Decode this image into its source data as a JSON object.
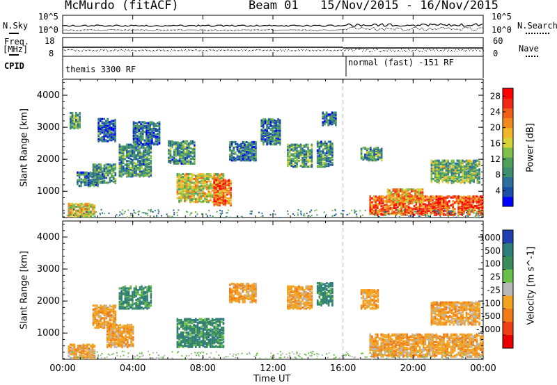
{
  "header": {
    "station": "McMurdo (fitACF)",
    "beam": "Beam 01",
    "date_range": "15/Nov/2015 - 16/Nov/2015"
  },
  "top_panels": {
    "nsky_label": "N.Sky",
    "nsearch_label": "N.Search",
    "noise_ticks_left": [
      "10^5",
      "10^0"
    ],
    "noise_ticks_right": [
      "10^5",
      "10^0"
    ],
    "freq_label": "Freq.",
    "freq_unit": "[MHz]",
    "freq_ticks": [
      "18",
      "8"
    ],
    "nave_label": "Nave",
    "nave_ticks": [
      "60",
      "0"
    ],
    "cpid_label": "CPID",
    "cpid_segments": [
      "themis 3300 RF",
      "normal (fast) -151 RF"
    ]
  },
  "x_axis": {
    "title": "Time UT",
    "ticks": [
      "00:00",
      "04:00",
      "08:00",
      "12:00",
      "16:00",
      "20:00",
      "00:00"
    ]
  },
  "chart_data": [
    {
      "type": "heatmap",
      "name": "power",
      "ylabel": "Slant Range [km]",
      "yticks": [
        1000,
        2000,
        3000,
        4000
      ],
      "ylim": [
        180,
        4500
      ],
      "xlim_hours": [
        0,
        24
      ],
      "colorbar": {
        "label": "Power [dB]",
        "ticks": [
          4,
          8,
          12,
          16,
          20,
          24,
          28
        ],
        "range": [
          0,
          30
        ],
        "colors": [
          "#0000ff",
          "#1a4fa8",
          "#2f6f9c",
          "#3e8f6e",
          "#4fa05a",
          "#7fc04a",
          "#d6d23a",
          "#f2b629",
          "#f08a1e",
          "#ef5d18",
          "#ee2a14",
          "#ff0000"
        ]
      },
      "regions": [
        {
          "t": [
            0.3,
            1.8
          ],
          "r": [
            250,
            650
          ],
          "level": 0.55
        },
        {
          "t": [
            0.4,
            1.0
          ],
          "r": [
            3000,
            3500
          ],
          "level": 0.35
        },
        {
          "t": [
            0.8,
            2.0
          ],
          "r": [
            1200,
            1650
          ],
          "level": 0.25
        },
        {
          "t": [
            1.7,
            3.0
          ],
          "r": [
            1300,
            1900
          ],
          "level": 0.3
        },
        {
          "t": [
            2.0,
            3.0
          ],
          "r": [
            2600,
            3300
          ],
          "level": 0.2
        },
        {
          "t": [
            3.2,
            5.0
          ],
          "r": [
            1500,
            2500
          ],
          "level": 0.3
        },
        {
          "t": [
            4.0,
            5.5
          ],
          "r": [
            2500,
            3200
          ],
          "level": 0.2
        },
        {
          "t": [
            6.0,
            7.5
          ],
          "r": [
            1900,
            2600
          ],
          "level": 0.3
        },
        {
          "t": [
            6.5,
            9.2
          ],
          "r": [
            700,
            1600
          ],
          "level": 0.55
        },
        {
          "t": [
            8.6,
            9.6
          ],
          "r": [
            600,
            1400
          ],
          "level": 0.75
        },
        {
          "t": [
            9.5,
            11.0
          ],
          "r": [
            2000,
            2600
          ],
          "level": 0.25
        },
        {
          "t": [
            11.3,
            12.4
          ],
          "r": [
            2500,
            3300
          ],
          "level": 0.25
        },
        {
          "t": [
            12.8,
            14.2
          ],
          "r": [
            1800,
            2500
          ],
          "level": 0.35
        },
        {
          "t": [
            14.5,
            15.4
          ],
          "r": [
            1800,
            2600
          ],
          "level": 0.3
        },
        {
          "t": [
            14.8,
            15.6
          ],
          "r": [
            3100,
            3500
          ],
          "level": 0.2
        },
        {
          "t": [
            17.0,
            18.2
          ],
          "r": [
            2000,
            2400
          ],
          "level": 0.3
        },
        {
          "t": [
            17.5,
            24.0
          ],
          "r": [
            300,
            900
          ],
          "level": 0.8
        },
        {
          "t": [
            18.5,
            20.5
          ],
          "r": [
            700,
            1100
          ],
          "level": 0.65
        },
        {
          "t": [
            21.0,
            23.8
          ],
          "r": [
            1300,
            2000
          ],
          "level": 0.4
        }
      ]
    },
    {
      "type": "heatmap",
      "name": "velocity",
      "ylabel": "Slant Range [km]",
      "yticks": [
        1000,
        2000,
        3000,
        4000
      ],
      "ylim": [
        180,
        4500
      ],
      "xlim_hours": [
        0,
        24
      ],
      "colorbar": {
        "label": "Velocity [m s^-1]",
        "tick_labels": [
          "1000",
          "500",
          "100",
          "25",
          "-25",
          "-100",
          "-500",
          "-1000"
        ],
        "colors": [
          "#1f3fb0",
          "#2e7d7a",
          "#3a8c5a",
          "#6ac04a",
          "#b8b8b8",
          "#f2a321",
          "#f07a18",
          "#ee4014",
          "#e80000"
        ]
      },
      "regions": [
        {
          "t": [
            0.3,
            1.8
          ],
          "r": [
            250,
            700
          ],
          "v": "neg"
        },
        {
          "t": [
            1.7,
            3.0
          ],
          "r": [
            1200,
            1900
          ],
          "v": "neg"
        },
        {
          "t": [
            2.5,
            4.0
          ],
          "r": [
            600,
            1300
          ],
          "v": "neg"
        },
        {
          "t": [
            3.2,
            5.0
          ],
          "r": [
            1800,
            2500
          ],
          "v": "pos"
        },
        {
          "t": [
            6.5,
            9.2
          ],
          "r": [
            600,
            1500
          ],
          "v": "pos"
        },
        {
          "t": [
            9.5,
            11.0
          ],
          "r": [
            2000,
            2600
          ],
          "v": "neg"
        },
        {
          "t": [
            12.8,
            14.2
          ],
          "r": [
            1800,
            2500
          ],
          "v": "neg"
        },
        {
          "t": [
            14.5,
            15.4
          ],
          "r": [
            1900,
            2600
          ],
          "v": "pos"
        },
        {
          "t": [
            17.0,
            18.0
          ],
          "r": [
            1800,
            2400
          ],
          "v": "neg"
        },
        {
          "t": [
            17.5,
            24.0
          ],
          "r": [
            300,
            1000
          ],
          "v": "neg"
        },
        {
          "t": [
            21.0,
            23.8
          ],
          "r": [
            1300,
            2000
          ],
          "v": "neg"
        }
      ]
    }
  ],
  "colors": {
    "axis": "#000000",
    "gap_line": "#bbbbbb"
  }
}
